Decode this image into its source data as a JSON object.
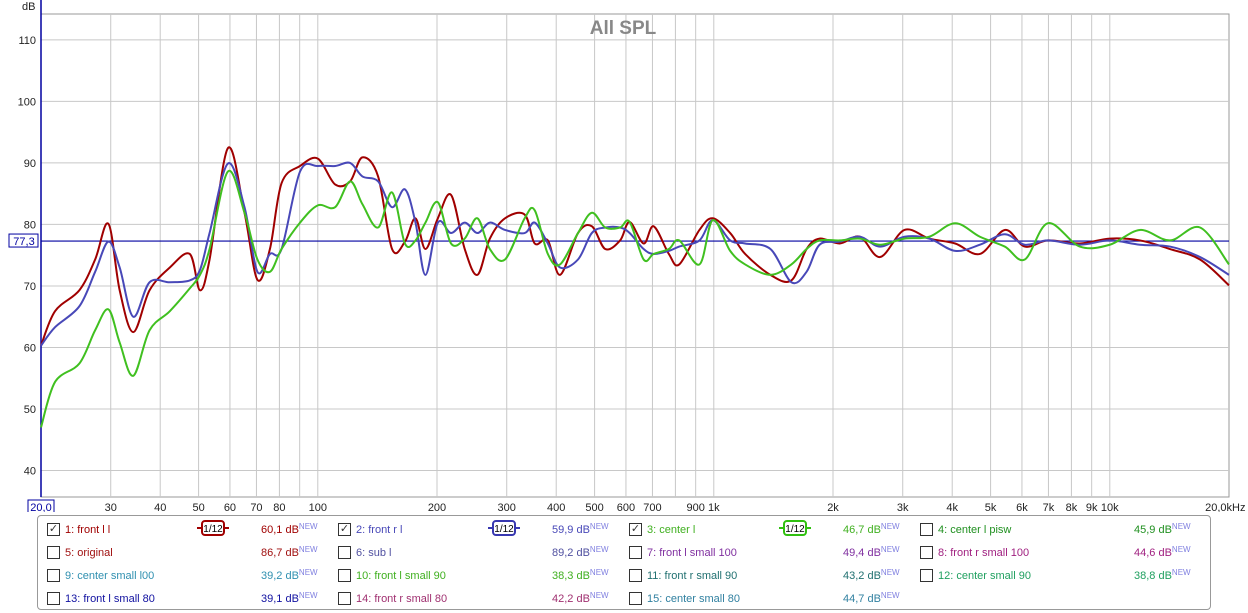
{
  "chart_data": {
    "type": "line",
    "title": "All SPL",
    "ylabel": "dB",
    "xlabel": "Hz",
    "xscale": "log",
    "xlim": [
      20,
      20000
    ],
    "ylim": [
      35.7,
      114.2
    ],
    "grid": true,
    "yticks": [
      40,
      50,
      60,
      70,
      80,
      90,
      100,
      110
    ],
    "xticks": [
      {
        "v": 20,
        "label": "20,0",
        "boxed": true
      },
      {
        "v": 30,
        "label": "30"
      },
      {
        "v": 40,
        "label": "40"
      },
      {
        "v": 50,
        "label": "50"
      },
      {
        "v": 60,
        "label": "60"
      },
      {
        "v": 70,
        "label": "70"
      },
      {
        "v": 80,
        "label": "80"
      },
      {
        "v": 90,
        "label": ""
      },
      {
        "v": 100,
        "label": "100"
      },
      {
        "v": 200,
        "label": "200"
      },
      {
        "v": 300,
        "label": "300"
      },
      {
        "v": 400,
        "label": "400"
      },
      {
        "v": 500,
        "label": "500"
      },
      {
        "v": 600,
        "label": "600"
      },
      {
        "v": 700,
        "label": "700"
      },
      {
        "v": 800,
        "label": ""
      },
      {
        "v": 900,
        "label": "900"
      },
      {
        "v": 1000,
        "label": "1k"
      },
      {
        "v": 2000,
        "label": "2k"
      },
      {
        "v": 3000,
        "label": "3k"
      },
      {
        "v": 4000,
        "label": "4k"
      },
      {
        "v": 5000,
        "label": "5k"
      },
      {
        "v": 6000,
        "label": "6k"
      },
      {
        "v": 7000,
        "label": "7k"
      },
      {
        "v": 8000,
        "label": "8k"
      },
      {
        "v": 9000,
        "label": "9k"
      },
      {
        "v": 10000,
        "label": "10k"
      },
      {
        "v": 20000,
        "label": "20,0k"
      }
    ],
    "x_unit_label": "Hz",
    "cursor": {
      "value": 77.3,
      "label": "77,3",
      "color": "#0000a0"
    },
    "x": [
      20,
      21.7,
      25,
      27.4,
      29.6,
      31.6,
      34.2,
      37.6,
      42.3,
      47.5,
      50.4,
      53.3,
      59.3,
      65.3,
      70.4,
      75.7,
      81,
      90.2,
      100,
      110.6,
      120.7,
      129.6,
      142,
      154,
      166,
      176.5,
      187,
      201,
      217,
      235,
      253,
      272,
      297,
      333,
      353,
      381,
      409,
      454,
      492,
      532,
      580,
      613,
      665,
      705,
      770,
      818,
      920,
      994,
      1100,
      1200,
      1390,
      1570,
      1715,
      1850,
      2080,
      2340,
      2630,
      3030,
      3500,
      4070,
      4700,
      5430,
      6100,
      6980,
      8400,
      10000,
      11920,
      14190,
      16900,
      20000
    ],
    "series": [
      {
        "name": "1: front l l",
        "color": "#a00000",
        "values": [
          60.3,
          65.9,
          69.3,
          74.3,
          80.1,
          69.3,
          62.5,
          69.3,
          73,
          75.2,
          69.3,
          74.3,
          92.4,
          81.9,
          71,
          76,
          86.7,
          89.5,
          90.7,
          86.5,
          87,
          90.9,
          87.8,
          76,
          77.2,
          81,
          76,
          81,
          84.8,
          76,
          71.8,
          77.7,
          81,
          81.6,
          76.9,
          77.4,
          71.8,
          78.6,
          79.7,
          76,
          77.4,
          80.4,
          76.9,
          79.7,
          75.2,
          73.5,
          79.1,
          81,
          78.6,
          75.2,
          71.8,
          70.9,
          76,
          77.7,
          76.9,
          78,
          74.7,
          79.1,
          77.7,
          76.9,
          75.2,
          79.1,
          76.4,
          77.4,
          76.9,
          77.7,
          77.4,
          76,
          74.3,
          70.1
        ]
      },
      {
        "name": "2: front r l",
        "color": "#4848b8",
        "values": [
          60.3,
          63.3,
          66.7,
          72.3,
          77.2,
          73,
          65,
          70.6,
          70.6,
          70.9,
          72.6,
          78.6,
          89.9,
          82.8,
          72.3,
          75.2,
          76,
          88.6,
          89.5,
          89.5,
          90,
          87.8,
          87,
          82.8,
          85.7,
          80.3,
          71.8,
          80.3,
          78.6,
          80.3,
          78.6,
          80.3,
          79.1,
          78.6,
          80.3,
          76.9,
          73,
          74.3,
          78.6,
          79.5,
          79.5,
          78.6,
          76,
          75.2,
          75.7,
          76.4,
          77.4,
          80.7,
          77.4,
          76.9,
          76,
          70.6,
          72.3,
          76.7,
          77.2,
          78,
          76.4,
          78,
          77.7,
          75.7,
          76.7,
          78.4,
          76.7,
          77.4,
          76.7,
          77.4,
          76.7,
          76.4,
          74.7,
          71.8
        ]
      },
      {
        "name": "3: center l",
        "color": "#40c020",
        "values": [
          47,
          54.4,
          57.4,
          62.8,
          66.2,
          60.8,
          55.4,
          62.8,
          65.9,
          69.6,
          71.8,
          76,
          88.6,
          81.9,
          74.3,
          72.3,
          76,
          80.3,
          83.1,
          82.8,
          87,
          83.3,
          79.5,
          85.2,
          76.9,
          77.4,
          80.3,
          83.6,
          76.9,
          77.7,
          81,
          76,
          74.3,
          81,
          82.3,
          75.2,
          73.5,
          78.6,
          81.9,
          79.5,
          79.5,
          80.4,
          74.3,
          75.2,
          76,
          77.4,
          73.5,
          80.7,
          75.7,
          73.5,
          71.8,
          73.5,
          76,
          77.4,
          77.4,
          77.7,
          76.7,
          77.7,
          78,
          80.2,
          78,
          76.4,
          74.3,
          80.2,
          76.4,
          76.7,
          79.1,
          77.4,
          79.5,
          73.5
        ]
      }
    ]
  },
  "legend": [
    {
      "checked": true,
      "label": "1: front l l",
      "value": "60,1 dB",
      "badge": "NEW",
      "color": "#a00000",
      "smoothing": "1/12",
      "smooth_color": "#a00000"
    },
    {
      "checked": true,
      "label": "2: front r l",
      "value": "59,9 dB",
      "badge": "NEW",
      "color": "#4848b8",
      "smoothing": "1/12",
      "smooth_color": "#3838b0"
    },
    {
      "checked": true,
      "label": "3: center l",
      "value": "46,7 dB",
      "badge": "NEW",
      "color": "#40b020",
      "smoothing": "1/12",
      "smooth_color": "#30c010"
    },
    {
      "checked": false,
      "label": "4: center l pisw",
      "value": "45,9 dB",
      "badge": "NEW",
      "color": "#209020"
    },
    {
      "checked": false,
      "label": "5: original",
      "value": "86,7 dB",
      "badge": "NEW",
      "color": "#a01010"
    },
    {
      "checked": false,
      "label": "6: sub l",
      "value": "89,2 dB",
      "badge": "NEW",
      "color": "#5050a0"
    },
    {
      "checked": false,
      "label": "7: front l small 100",
      "value": "49,4 dB",
      "badge": "NEW",
      "color": "#8030a0"
    },
    {
      "checked": false,
      "label": "8: front r small 100",
      "value": "44,6 dB",
      "badge": "NEW",
      "color": "#a02080"
    },
    {
      "checked": false,
      "label": "9: center small l00",
      "value": "39,2 dB",
      "badge": "NEW",
      "color": "#3090b0"
    },
    {
      "checked": false,
      "label": "10: front l small 90",
      "value": "38,3 dB",
      "badge": "NEW",
      "color": "#40b020"
    },
    {
      "checked": false,
      "label": "11: front r small 90",
      "value": "43,2 dB",
      "badge": "NEW",
      "color": "#207070"
    },
    {
      "checked": false,
      "label": "12: center small 90",
      "value": "38,8 dB",
      "badge": "NEW",
      "color": "#20a060"
    },
    {
      "checked": false,
      "label": "13: front l small 80",
      "value": "39,1 dB",
      "badge": "NEW",
      "color": "#1010a0"
    },
    {
      "checked": false,
      "label": "14: front r small 80",
      "value": "42,2 dB",
      "badge": "NEW",
      "color": "#a03070"
    },
    {
      "checked": false,
      "label": "15: center small 80",
      "value": "44,7 dB",
      "badge": "NEW",
      "color": "#3080a0"
    }
  ]
}
